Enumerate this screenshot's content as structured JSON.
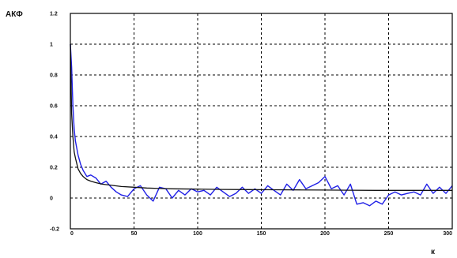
{
  "chart_data": {
    "type": "line",
    "ylabel": "АКФ",
    "xlabel": "к",
    "xlim": [
      0,
      300
    ],
    "ylim": [
      -0.2,
      1.2
    ],
    "grid": true,
    "x_ticks": [
      0,
      50,
      100,
      150,
      200,
      250,
      300
    ],
    "y_ticks": [
      -0.2,
      0,
      0.2,
      0.4,
      0.6,
      0.8,
      1,
      1.2
    ],
    "x_tick_labels": [
      "0",
      "50",
      "100",
      "150",
      "200",
      "250",
      "300"
    ],
    "y_tick_labels": [
      "-0.2",
      "0",
      "0.2",
      "0.4",
      "0.6",
      "0.8",
      "1",
      "1.2"
    ],
    "series": [
      {
        "color": "#1f1fe6",
        "x": [
          0,
          1,
          2,
          3,
          4,
          6,
          8,
          10,
          13,
          16,
          20,
          24,
          28,
          32,
          36,
          40,
          45,
          50,
          55,
          60,
          65,
          70,
          75,
          80,
          85,
          90,
          95,
          100,
          105,
          110,
          115,
          120,
          125,
          130,
          135,
          140,
          145,
          150,
          155,
          160,
          165,
          170,
          175,
          180,
          185,
          190,
          195,
          200,
          205,
          210,
          215,
          220,
          225,
          230,
          235,
          240,
          245,
          250,
          255,
          260,
          265,
          270,
          275,
          280,
          285,
          290,
          295,
          300
        ],
        "y": [
          1.0,
          0.85,
          0.6,
          0.45,
          0.37,
          0.28,
          0.22,
          0.18,
          0.14,
          0.15,
          0.13,
          0.09,
          0.11,
          0.07,
          0.04,
          0.02,
          0.01,
          0.06,
          0.08,
          0.02,
          -0.02,
          0.07,
          0.06,
          0.0,
          0.05,
          0.02,
          0.06,
          0.04,
          0.05,
          0.02,
          0.07,
          0.04,
          0.01,
          0.03,
          0.07,
          0.03,
          0.06,
          0.03,
          0.08,
          0.05,
          0.02,
          0.09,
          0.05,
          0.12,
          0.06,
          0.08,
          0.1,
          0.14,
          0.06,
          0.08,
          0.02,
          0.09,
          -0.04,
          -0.03,
          -0.05,
          -0.02,
          -0.04,
          0.02,
          0.04,
          0.02,
          0.03,
          0.04,
          0.02,
          0.09,
          0.03,
          0.07,
          0.03,
          0.08
        ]
      },
      {
        "color": "#111111",
        "x": [
          0,
          1,
          2,
          3,
          4,
          6,
          8,
          10,
          13,
          16,
          20,
          25,
          30,
          35,
          40,
          50,
          60,
          70,
          80,
          100,
          120,
          140,
          160,
          180,
          200,
          220,
          240,
          260,
          280,
          300
        ],
        "y": [
          1.0,
          0.55,
          0.4,
          0.3,
          0.26,
          0.19,
          0.16,
          0.14,
          0.12,
          0.11,
          0.1,
          0.09,
          0.085,
          0.08,
          0.075,
          0.07,
          0.065,
          0.062,
          0.06,
          0.058,
          0.056,
          0.055,
          0.054,
          0.053,
          0.052,
          0.051,
          0.05,
          0.05,
          0.05,
          0.05
        ]
      }
    ]
  }
}
